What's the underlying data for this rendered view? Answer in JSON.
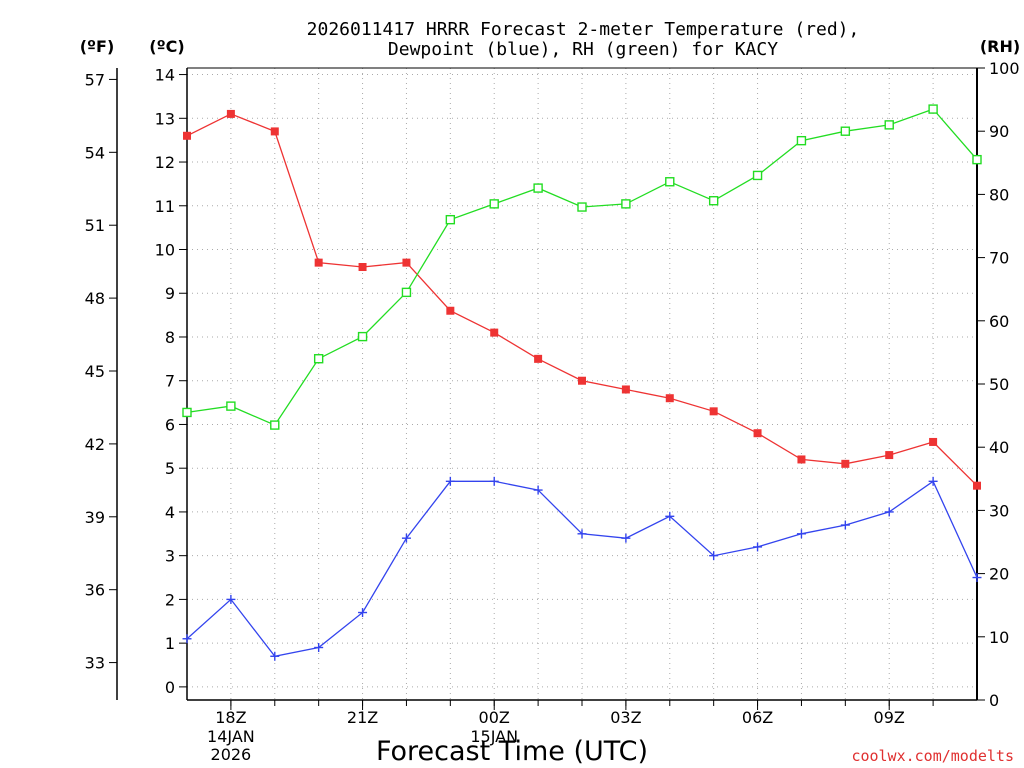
{
  "chart_data": {
    "type": "line",
    "title_line1": "2026011417 HRRR Forecast 2-meter Temperature (red),",
    "title_line2": "Dewpoint (blue), RH (green) for KACY",
    "xlabel": "Forecast Time (UTC)",
    "watermark": "coolwx.com/modelts",
    "unit_f": "(ºF)",
    "unit_c": "(ºC)",
    "unit_rh": "(RH)",
    "x_hours": [
      17,
      18,
      19,
      20,
      21,
      22,
      23,
      24,
      25,
      26,
      27,
      28,
      29,
      30,
      31,
      32,
      33,
      34,
      35
    ],
    "xlim": [
      17,
      35
    ],
    "x_ticks": [
      {
        "hour": 18,
        "label": "18Z",
        "sub1": "14JAN",
        "sub2": "2026"
      },
      {
        "hour": 21,
        "label": "21Z",
        "sub1": "",
        "sub2": ""
      },
      {
        "hour": 24,
        "label": "00Z",
        "sub1": "15JAN",
        "sub2": ""
      },
      {
        "hour": 27,
        "label": "03Z",
        "sub1": "",
        "sub2": ""
      },
      {
        "hour": 30,
        "label": "06Z",
        "sub1": "",
        "sub2": ""
      },
      {
        "hour": 33,
        "label": "09Z",
        "sub1": "",
        "sub2": ""
      }
    ],
    "ylim_c": [
      -0.3,
      14.15
    ],
    "y_ticks_c": [
      0,
      1,
      2,
      3,
      4,
      5,
      6,
      7,
      8,
      9,
      10,
      11,
      12,
      13,
      14
    ],
    "y_ticks_f": [
      33,
      36,
      39,
      42,
      45,
      48,
      51,
      54,
      57
    ],
    "ylim_rh": [
      0,
      100
    ],
    "y_ticks_rh": [
      0,
      10,
      20,
      30,
      40,
      50,
      60,
      70,
      80,
      90,
      100
    ],
    "series": [
      {
        "name": "Temperature",
        "axis": "c",
        "color": "#ee3333",
        "marker": "filled-square",
        "values": [
          12.6,
          13.1,
          12.7,
          9.7,
          9.6,
          9.7,
          8.6,
          8.1,
          7.5,
          7.0,
          6.8,
          6.6,
          6.3,
          5.8,
          5.2,
          5.1,
          5.3,
          5.6,
          4.6
        ]
      },
      {
        "name": "Dewpoint",
        "axis": "c",
        "color": "#3344ee",
        "marker": "plus",
        "values": [
          1.1,
          2.0,
          0.7,
          0.9,
          1.7,
          3.4,
          4.7,
          4.7,
          4.5,
          3.5,
          3.4,
          3.9,
          3.0,
          3.2,
          3.5,
          3.7,
          4.0,
          4.7,
          2.5
        ]
      },
      {
        "name": "RH",
        "axis": "rh",
        "color": "#22dd22",
        "marker": "open-square",
        "values": [
          45.5,
          46.5,
          43.5,
          54,
          57.5,
          64.5,
          76,
          78.5,
          81,
          78,
          78.5,
          82,
          79,
          83,
          88.5,
          90,
          91,
          93.5,
          85.5
        ]
      }
    ]
  }
}
